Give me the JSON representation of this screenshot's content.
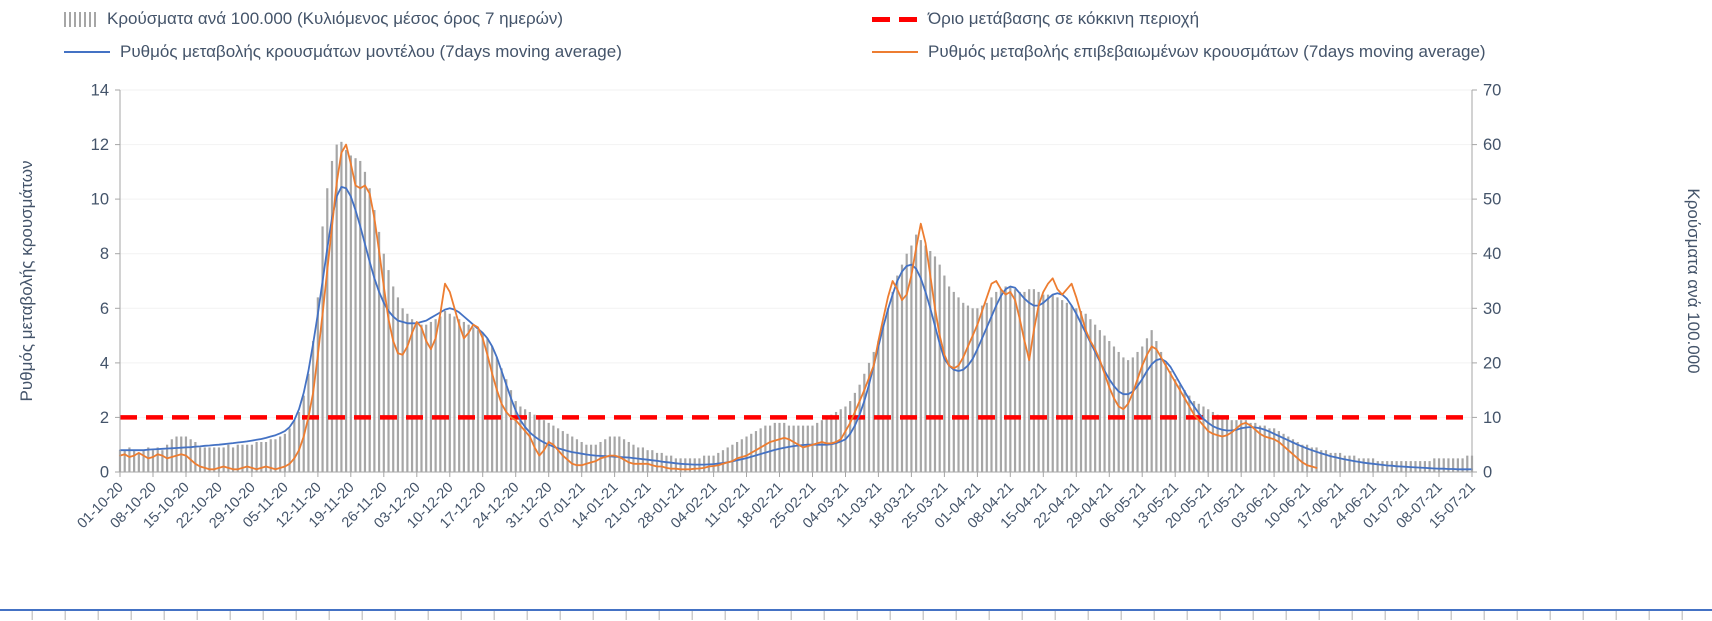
{
  "legend": {
    "bars_label": "Κρούσματα ανά 100.000 (Κυλιόμενος μέσος όρος 7 ημερών)",
    "threshold_label": "Όριο μετάβασης σε κόκκινη περιοχή",
    "model_label": "Ρυθμός μεταβολής κρουσμάτων μοντέλου (7days moving average)",
    "confirmed_label": "Ρυθμός μεταβολής επιβεβαιωμένων κρουσμάτων (7days moving average)"
  },
  "axes": {
    "left_title": "Ρυθμός μεταβολής κρουσμάτων",
    "right_title": "Κρούσματα ανά 100.000"
  },
  "colors": {
    "bars": "#a6a6a6",
    "model": "#4472c4",
    "confirmed": "#ed7d31",
    "threshold": "#ff0000",
    "text": "#44546a",
    "axis": "#a6a6a6",
    "gridline": "#f2f2f2",
    "sheet_line": "#4472c4"
  },
  "chart_data": {
    "type": "combo-bar-line",
    "title": "",
    "legend_position": "top",
    "grid": false,
    "n_points": 288,
    "days_per_tick": 7,
    "x_tick_labels": [
      "01-10-20",
      "08-10-20",
      "15-10-20",
      "22-10-20",
      "29-10-20",
      "05-11-20",
      "12-11-20",
      "19-11-20",
      "26-11-20",
      "03-12-20",
      "10-12-20",
      "17-12-20",
      "24-12-20",
      "31-12-20",
      "07-01-21",
      "14-01-21",
      "21-01-21",
      "28-01-21",
      "04-02-21",
      "11-02-21",
      "18-02-21",
      "25-02-21",
      "04-03-21",
      "11-03-21",
      "18-03-21",
      "25-03-21",
      "01-04-21",
      "08-04-21",
      "15-04-21",
      "22-04-21",
      "29-04-21",
      "06-05-21",
      "13-05-21",
      "20-05-21",
      "27-05-21",
      "03-06-21",
      "10-06-21",
      "17-06-21",
      "24-06-21",
      "01-07-21",
      "08-07-21",
      "15-07-21"
    ],
    "left_axis": {
      "title": "Ρυθμός μεταβολής κρουσμάτων",
      "ticks": [
        0,
        2,
        4,
        6,
        8,
        10,
        12,
        14
      ],
      "lim": [
        0,
        14
      ]
    },
    "right_axis": {
      "title": "Κρούσματα ανά 100.000",
      "ticks": [
        0,
        10,
        20,
        30,
        40,
        50,
        60,
        70
      ],
      "lim": [
        0,
        70
      ]
    },
    "threshold": {
      "label": "Όριο μετάβασης σε κόκκινη περιοχή",
      "value_left_axis": 2
    },
    "series": [
      {
        "name": "Κρούσματα ανά 100.000 (Κυλιόμενος μέσος όρος 7 ημερών)",
        "type": "bar",
        "axis": "right",
        "values": [
          4,
          4,
          4.5,
          4,
          3.5,
          4,
          4.5,
          4,
          4.5,
          4,
          5,
          6,
          6.5,
          6.5,
          6.5,
          6,
          5.5,
          4.5,
          4.5,
          4.5,
          4.5,
          4.5,
          4.5,
          5,
          4.5,
          5,
          5,
          5,
          5,
          5.5,
          5.5,
          5.5,
          6,
          6,
          6.5,
          7,
          8,
          9.5,
          11,
          14,
          18,
          24,
          32,
          45,
          52,
          57,
          60,
          60.5,
          59,
          58,
          57.5,
          57,
          55,
          52,
          48,
          44,
          40,
          37,
          34,
          32,
          30,
          29,
          28,
          27.5,
          27,
          27,
          27.5,
          28,
          28.5,
          29.5,
          29,
          28.5,
          28,
          27.5,
          27,
          26.5,
          26,
          25.5,
          24.5,
          23,
          21,
          19,
          17,
          15,
          13,
          12,
          11.5,
          11,
          10.5,
          10,
          9.5,
          9,
          8.5,
          8,
          7.5,
          7,
          6.5,
          6,
          5.5,
          5,
          5,
          5,
          5.5,
          6,
          6.5,
          6.5,
          6.5,
          6,
          5.5,
          5,
          4.5,
          4.5,
          4,
          4,
          3.5,
          3.5,
          3,
          3,
          2.5,
          2.5,
          2.5,
          2.5,
          2.5,
          2.5,
          3,
          3,
          3,
          3.5,
          4,
          4.5,
          5,
          5.5,
          6,
          6.5,
          7,
          7.5,
          8,
          8.5,
          8.5,
          9,
          9,
          9,
          8.5,
          8.5,
          8.5,
          8.5,
          8.5,
          8.5,
          9,
          9.5,
          10,
          10.5,
          11,
          11.5,
          12,
          13,
          14.5,
          16,
          18,
          20,
          22,
          24,
          27,
          30,
          33,
          36,
          38,
          40,
          41.5,
          43.5,
          42.5,
          41.5,
          40.5,
          39.5,
          38,
          36,
          34,
          33,
          32,
          31,
          30.5,
          30,
          30,
          30.5,
          31,
          32,
          33,
          33.5,
          34,
          34,
          33.5,
          33,
          33,
          33.5,
          33.5,
          33,
          32.5,
          32.5,
          32.5,
          32,
          31.5,
          31,
          30.5,
          30,
          29.5,
          29,
          28,
          27,
          26,
          25,
          24,
          23,
          22,
          21,
          20.5,
          21,
          22,
          23,
          24.5,
          26,
          24,
          22,
          20,
          18.5,
          17,
          16,
          15,
          14,
          13,
          12.5,
          12,
          11.5,
          11,
          10.5,
          10,
          10,
          9.5,
          9.5,
          9.5,
          9.5,
          9,
          9,
          8.5,
          8.5,
          8,
          8,
          7.5,
          7,
          6.5,
          6,
          5.5,
          5,
          5,
          4.5,
          4.5,
          4,
          4,
          3.5,
          3.5,
          3.5,
          3,
          3,
          3,
          2.5,
          2.5,
          2.5,
          2.5,
          2,
          2,
          2,
          2,
          2,
          2,
          2,
          2,
          2,
          2,
          2,
          2,
          2.5,
          2.5,
          2.5,
          2.5,
          2.5,
          2.5,
          2.5,
          3,
          3
        ]
      },
      {
        "name": "Ρυθμός μεταβολής κρουσμάτων μοντέλου (7days moving average)",
        "type": "line",
        "axis": "left",
        "values": [
          0.8,
          0.8,
          0.8,
          0.8,
          0.8,
          0.8,
          0.82,
          0.83,
          0.84,
          0.85,
          0.86,
          0.87,
          0.88,
          0.89,
          0.9,
          0.91,
          0.93,
          0.94,
          0.96,
          0.97,
          0.99,
          1.0,
          1.02,
          1.04,
          1.06,
          1.08,
          1.1,
          1.12,
          1.15,
          1.18,
          1.21,
          1.25,
          1.3,
          1.35,
          1.42,
          1.5,
          1.65,
          1.9,
          2.3,
          2.9,
          3.7,
          4.7,
          5.8,
          7.0,
          8.2,
          9.3,
          10.1,
          10.45,
          10.4,
          10.1,
          9.6,
          9.0,
          8.35,
          7.7,
          7.1,
          6.6,
          6.2,
          5.9,
          5.7,
          5.55,
          5.5,
          5.45,
          5.45,
          5.45,
          5.5,
          5.55,
          5.65,
          5.75,
          5.85,
          5.95,
          6.0,
          5.95,
          5.85,
          5.7,
          5.55,
          5.4,
          5.25,
          5.1,
          4.9,
          4.6,
          4.2,
          3.7,
          3.2,
          2.7,
          2.25,
          1.9,
          1.65,
          1.45,
          1.3,
          1.18,
          1.08,
          1.0,
          0.93,
          0.87,
          0.82,
          0.77,
          0.73,
          0.7,
          0.67,
          0.64,
          0.62,
          0.6,
          0.59,
          0.58,
          0.57,
          0.56,
          0.55,
          0.54,
          0.53,
          0.51,
          0.49,
          0.47,
          0.45,
          0.43,
          0.41,
          0.38,
          0.36,
          0.34,
          0.32,
          0.3,
          0.29,
          0.28,
          0.27,
          0.27,
          0.27,
          0.28,
          0.29,
          0.31,
          0.33,
          0.36,
          0.39,
          0.43,
          0.47,
          0.51,
          0.56,
          0.61,
          0.66,
          0.71,
          0.76,
          0.81,
          0.85,
          0.89,
          0.92,
          0.95,
          0.97,
          0.99,
          1.0,
          1.0,
          1.0,
          1.0,
          1.0,
          1.02,
          1.06,
          1.12,
          1.2,
          1.4,
          1.7,
          2.1,
          2.6,
          3.2,
          3.9,
          4.6,
          5.3,
          5.95,
          6.5,
          7.0,
          7.35,
          7.55,
          7.6,
          7.45,
          7.1,
          6.6,
          6.0,
          5.35,
          4.7,
          4.15,
          3.9,
          3.75,
          3.7,
          3.75,
          3.9,
          4.15,
          4.5,
          4.9,
          5.3,
          5.7,
          6.1,
          6.45,
          6.7,
          6.8,
          6.75,
          6.55,
          6.35,
          6.2,
          6.1,
          6.1,
          6.2,
          6.35,
          6.5,
          6.55,
          6.5,
          6.35,
          6.1,
          5.8,
          5.45,
          5.1,
          4.75,
          4.4,
          4.05,
          3.7,
          3.4,
          3.15,
          2.95,
          2.85,
          2.85,
          2.95,
          3.15,
          3.4,
          3.7,
          3.95,
          4.1,
          4.15,
          4.05,
          3.85,
          3.55,
          3.25,
          2.95,
          2.65,
          2.4,
          2.15,
          1.95,
          1.8,
          1.68,
          1.6,
          1.55,
          1.52,
          1.52,
          1.55,
          1.6,
          1.63,
          1.65,
          1.63,
          1.6,
          1.55,
          1.48,
          1.4,
          1.32,
          1.24,
          1.16,
          1.08,
          1.0,
          0.93,
          0.86,
          0.8,
          0.74,
          0.68,
          0.63,
          0.58,
          0.54,
          0.5,
          0.46,
          0.43,
          0.4,
          0.37,
          0.34,
          0.32,
          0.3,
          0.28,
          0.26,
          0.24,
          0.23,
          0.21,
          0.2,
          0.19,
          0.18,
          0.17,
          0.16,
          0.15,
          0.14,
          0.13,
          0.12,
          0.12,
          0.11,
          0.11,
          0.1,
          0.1,
          0.1,
          0.1
        ]
      },
      {
        "name": "Ρυθμός μεταβολής επιβεβαιωμένων κρουσμάτων (7days moving average)",
        "type": "line",
        "axis": "left",
        "values": [
          0.6,
          0.65,
          0.55,
          0.6,
          0.7,
          0.6,
          0.5,
          0.55,
          0.65,
          0.6,
          0.5,
          0.55,
          0.6,
          0.65,
          0.6,
          0.45,
          0.3,
          0.2,
          0.15,
          0.1,
          0.1,
          0.15,
          0.2,
          0.15,
          0.1,
          0.1,
          0.15,
          0.2,
          0.15,
          0.1,
          0.15,
          0.2,
          0.15,
          0.1,
          0.15,
          0.2,
          0.3,
          0.5,
          0.8,
          1.3,
          2.0,
          2.9,
          4.3,
          5.8,
          7.4,
          9.0,
          10.6,
          11.7,
          12.0,
          11.3,
          10.5,
          10.4,
          10.5,
          10.2,
          9.3,
          8.1,
          6.8,
          5.6,
          4.8,
          4.35,
          4.3,
          4.6,
          5.1,
          5.5,
          5.3,
          4.8,
          4.5,
          4.9,
          5.8,
          6.9,
          6.6,
          6.0,
          5.4,
          4.9,
          5.1,
          5.4,
          5.3,
          4.9,
          4.3,
          3.6,
          3.0,
          2.5,
          2.2,
          2.0,
          1.9,
          1.7,
          1.5,
          1.3,
          0.9,
          0.6,
          0.8,
          1.1,
          1.0,
          0.8,
          0.6,
          0.45,
          0.3,
          0.25,
          0.25,
          0.3,
          0.35,
          0.4,
          0.5,
          0.55,
          0.6,
          0.6,
          0.55,
          0.45,
          0.35,
          0.3,
          0.3,
          0.3,
          0.3,
          0.25,
          0.2,
          0.2,
          0.15,
          0.12,
          0.12,
          0.1,
          0.1,
          0.1,
          0.12,
          0.13,
          0.15,
          0.2,
          0.22,
          0.25,
          0.3,
          0.35,
          0.4,
          0.5,
          0.55,
          0.6,
          0.7,
          0.8,
          0.9,
          1.0,
          1.1,
          1.15,
          1.2,
          1.25,
          1.2,
          1.1,
          1.0,
          0.9,
          0.95,
          1.0,
          1.05,
          1.1,
          1.05,
          1.05,
          1.1,
          1.2,
          1.5,
          1.8,
          2.2,
          2.6,
          3.0,
          3.45,
          3.9,
          4.8,
          5.6,
          6.4,
          7.0,
          6.7,
          6.3,
          6.5,
          7.2,
          8.2,
          9.1,
          8.4,
          7.2,
          6.0,
          5.0,
          4.3,
          3.9,
          3.8,
          3.9,
          4.2,
          4.6,
          5.0,
          5.4,
          5.9,
          6.4,
          6.9,
          7.0,
          6.7,
          6.5,
          6.6,
          6.3,
          5.6,
          4.8,
          4.1,
          5.2,
          6.1,
          6.6,
          6.9,
          7.1,
          6.7,
          6.5,
          6.7,
          6.9,
          6.4,
          5.8,
          5.2,
          4.8,
          4.5,
          4.1,
          3.6,
          3.1,
          2.7,
          2.4,
          2.3,
          2.5,
          2.9,
          3.4,
          3.9,
          4.3,
          4.6,
          4.5,
          4.2,
          3.9,
          3.6,
          3.3,
          3.0,
          2.7,
          2.4,
          2.1,
          1.9,
          1.7,
          1.5,
          1.4,
          1.35,
          1.3,
          1.35,
          1.45,
          1.6,
          1.75,
          1.8,
          1.7,
          1.55,
          1.4,
          1.3,
          1.25,
          1.2,
          1.1,
          0.95,
          0.8,
          0.65,
          0.5,
          0.35,
          0.25,
          0.2,
          0.15,
          null,
          null,
          null,
          null,
          null,
          null,
          null,
          null,
          null,
          null,
          null,
          null,
          null,
          null,
          null,
          null,
          null,
          null,
          null,
          null,
          null,
          null,
          null,
          null,
          null,
          null,
          null,
          null,
          null,
          null,
          null,
          null,
          null
        ]
      }
    ]
  }
}
